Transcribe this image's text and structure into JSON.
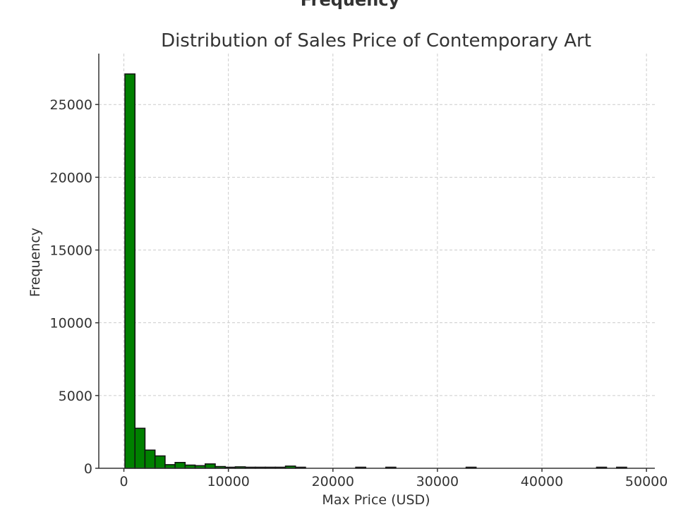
{
  "header": {
    "clipped_text": "Frequency"
  },
  "chart_data": {
    "type": "bar",
    "title": "Distribution of Sales Price of Contemporary Art",
    "xlabel": "Max Price (USD)",
    "ylabel": "Frequency",
    "xlim": [
      -2400,
      50800
    ],
    "ylim": [
      0,
      28500
    ],
    "xticks": [
      0,
      10000,
      20000,
      30000,
      40000,
      50000
    ],
    "yticks": [
      0,
      5000,
      10000,
      15000,
      20000,
      25000
    ],
    "grid": true,
    "bar_color": "#008000",
    "bar_edge_color": "#111111",
    "bin_width": 960,
    "bins": [
      {
        "x0": 100,
        "count": 27100
      },
      {
        "x0": 1060,
        "count": 2750
      },
      {
        "x0": 2020,
        "count": 1250
      },
      {
        "x0": 2980,
        "count": 850
      },
      {
        "x0": 3940,
        "count": 250
      },
      {
        "x0": 4900,
        "count": 400
      },
      {
        "x0": 5860,
        "count": 220
      },
      {
        "x0": 6820,
        "count": 180
      },
      {
        "x0": 7780,
        "count": 300
      },
      {
        "x0": 8740,
        "count": 120
      },
      {
        "x0": 9700,
        "count": 30
      },
      {
        "x0": 10660,
        "count": 100
      },
      {
        "x0": 11620,
        "count": 20
      },
      {
        "x0": 12580,
        "count": 15
      },
      {
        "x0": 13540,
        "count": 10
      },
      {
        "x0": 14500,
        "count": 10
      },
      {
        "x0": 15460,
        "count": 150
      },
      {
        "x0": 16420,
        "count": 10
      },
      {
        "x0": 22180,
        "count": 30
      },
      {
        "x0": 25060,
        "count": 70
      },
      {
        "x0": 32740,
        "count": 40
      },
      {
        "x0": 45220,
        "count": 40
      },
      {
        "x0": 47140,
        "count": 40
      }
    ]
  }
}
